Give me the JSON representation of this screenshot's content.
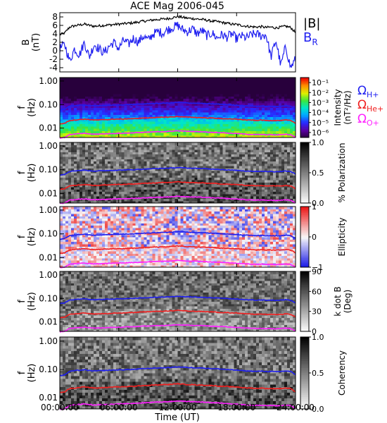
{
  "title": "ACE Mag 2006-045",
  "time_axis": {
    "ticks": [
      "00:00:00",
      "06:00:00",
      "12:00:00",
      "18:00:00",
      "24:00:00"
    ],
    "tick_hours": [
      0,
      6,
      12,
      18,
      24
    ],
    "label": "Time (UT)",
    "range_hours": [
      0,
      24
    ]
  },
  "chart_data": [
    {
      "type": "line",
      "panel": "field",
      "ylabel": [
        "B",
        "(nT)"
      ],
      "ylim": [
        -5,
        9
      ],
      "yticks": [
        "8",
        "6",
        "4",
        "2",
        "0",
        "-2",
        "-4"
      ],
      "ytick_values": [
        8,
        6,
        4,
        2,
        0,
        -2,
        -4
      ],
      "series": [
        {
          "name": "|B|",
          "color": "#000000",
          "x": [
            0,
            0.5,
            1,
            1.5,
            2,
            2.5,
            3,
            3.5,
            4,
            4.5,
            5,
            5.5,
            6,
            6.5,
            7,
            7.5,
            8,
            8.5,
            9,
            9.5,
            10,
            10.5,
            11,
            11.5,
            12,
            12.5,
            13,
            13.5,
            14,
            14.5,
            15,
            15.5,
            16,
            16.5,
            17,
            17.5,
            18,
            18.5,
            19,
            19.5,
            20,
            20.5,
            21,
            21.5,
            22,
            22.5,
            23,
            23.5,
            24
          ],
          "values": [
            3.8,
            4.2,
            5.6,
            5.9,
            6.1,
            6.3,
            6.0,
            5.8,
            5.9,
            6.0,
            6.1,
            6.2,
            6.3,
            6.4,
            6.5,
            6.6,
            6.8,
            7.0,
            7.1,
            7.3,
            7.4,
            7.5,
            7.6,
            7.8,
            8.1,
            7.9,
            7.7,
            7.6,
            7.5,
            7.4,
            7.2,
            7.0,
            6.9,
            6.7,
            6.5,
            6.3,
            6.2,
            6.0,
            5.8,
            5.7,
            5.6,
            5.7,
            5.5,
            5.6,
            5.4,
            5.6,
            5.8,
            5.5,
            4.3
          ]
        },
        {
          "name": "B_R",
          "label_main": "B",
          "label_sub": "R",
          "color": "#1f1ff0",
          "x": [
            0,
            0.5,
            1,
            1.5,
            2,
            2.5,
            3,
            3.5,
            4,
            4.5,
            5,
            5.5,
            6,
            6.5,
            7,
            7.5,
            8,
            8.5,
            9,
            9.5,
            10,
            10.5,
            11,
            11.5,
            12,
            12.5,
            13,
            13.5,
            14,
            14.5,
            15,
            15.5,
            16,
            16.5,
            17,
            17.5,
            18,
            18.5,
            19,
            19.5,
            20,
            20.5,
            21,
            21.5,
            22,
            22.5,
            23,
            23.5,
            24
          ],
          "values": [
            0.5,
            1.5,
            -2.5,
            0.5,
            -1.0,
            2.0,
            -1.5,
            1.5,
            0.5,
            -0.5,
            1.0,
            2.0,
            0.5,
            2.5,
            1.5,
            3.0,
            2.0,
            3.5,
            2.5,
            4.0,
            4.5,
            4.2,
            5.0,
            5.5,
            6.0,
            5.0,
            4.5,
            5.2,
            4.0,
            4.8,
            3.5,
            4.2,
            3.0,
            3.8,
            3.2,
            4.0,
            2.8,
            3.5,
            3.0,
            3.8,
            4.0,
            3.5,
            3.8,
            -1.5,
            2.5,
            -3.5,
            1.0,
            -4.0,
            -2.0
          ]
        }
      ]
    },
    {
      "type": "heatmap",
      "panel": "intensity",
      "ylabel": [
        "f",
        "(Hz)"
      ],
      "yticks": [
        "1.00",
        "0.10",
        "0.01"
      ],
      "ytick_values": [
        1.0,
        0.1,
        0.01
      ],
      "ylim": [
        0.004,
        1.4
      ],
      "yscale": "log",
      "colorbar": {
        "label": [
          "Intensity",
          "(nT²/Hz)"
        ],
        "ticks": [
          "10⁻¹",
          "10⁻²",
          "10⁻³",
          "10⁻⁴",
          "10⁻⁵",
          "10⁻⁶"
        ],
        "tick_values": [
          -1,
          -2,
          -3,
          -4,
          -5,
          -6
        ],
        "range": [
          -6.5,
          -0.5
        ],
        "colormap": "rainbow"
      },
      "legend": [
        {
          "main": "Ω",
          "sub": "H+",
          "color": "#1f1ff0"
        },
        {
          "main": "Ω",
          "sub": "He+",
          "color": "#f01f1f"
        },
        {
          "main": "Ω",
          "sub": "O+",
          "color": "#ff20ff"
        }
      ]
    },
    {
      "type": "heatmap",
      "panel": "polarization",
      "ylabel": [
        "f",
        "(Hz)"
      ],
      "yticks": [
        "1.00",
        "0.10",
        "0.01"
      ],
      "ytick_values": [
        1.0,
        0.1,
        0.01
      ],
      "ylim": [
        0.004,
        1.4
      ],
      "yscale": "log",
      "colorbar": {
        "label": [
          "% Polarization"
        ],
        "ticks": [
          "1.0",
          "0.5",
          "0.0"
        ],
        "tick_values": [
          1.0,
          0.5,
          0.0
        ],
        "range": [
          0,
          1
        ],
        "colormap": "gray"
      }
    },
    {
      "type": "heatmap",
      "panel": "ellipticity",
      "ylabel": [
        "f",
        "(Hz)"
      ],
      "yticks": [
        "1.00",
        "0.10",
        "0.01"
      ],
      "ytick_values": [
        1.0,
        0.1,
        0.01
      ],
      "ylim": [
        0.004,
        1.4
      ],
      "yscale": "log",
      "colorbar": {
        "label": [
          "Ellipticity"
        ],
        "ticks": [
          "1",
          "0",
          "−1"
        ],
        "tick_values": [
          1,
          0,
          -1
        ],
        "range": [
          -1,
          1
        ],
        "colormap": "bluewhitered"
      }
    },
    {
      "type": "heatmap",
      "panel": "wave-normal-angle",
      "ylabel": [
        "f",
        "(Hz)"
      ],
      "yticks": [
        "1.00",
        "0.10",
        "0.01"
      ],
      "ytick_values": [
        1.0,
        0.1,
        0.01
      ],
      "ylim": [
        0.004,
        1.4
      ],
      "yscale": "log",
      "colorbar": {
        "label": [
          "k dot B",
          "(Deg)"
        ],
        "ticks": [
          "90",
          "60",
          "30",
          "0"
        ],
        "tick_values": [
          90,
          60,
          30,
          0
        ],
        "range": [
          0,
          90
        ],
        "colormap": "gray"
      }
    },
    {
      "type": "heatmap",
      "panel": "coherency",
      "ylabel": [
        "f",
        "(Hz)"
      ],
      "yticks": [
        "1.00",
        "0.10",
        "0.01"
      ],
      "ytick_values": [
        1.0,
        0.1,
        0.01
      ],
      "ylim": [
        0.004,
        1.4
      ],
      "yscale": "log",
      "colorbar": {
        "label": [
          "Coherency"
        ],
        "ticks": [
          "1.0",
          "0.5",
          "0.0"
        ],
        "tick_values": [
          1.0,
          0.5,
          0.0
        ],
        "range": [
          0,
          1
        ],
        "colormap": "gray"
      }
    }
  ],
  "gyrofrequency_lines": {
    "x_hours": [
      0,
      0.5,
      1,
      1.5,
      2,
      2.5,
      3,
      3.5,
      4,
      4.5,
      5,
      5.5,
      6,
      6.5,
      7,
      7.5,
      8,
      8.5,
      9,
      9.5,
      10,
      10.5,
      11,
      11.5,
      12,
      12.5,
      13,
      13.5,
      14,
      14.5,
      15,
      15.5,
      16,
      16.5,
      17,
      17.5,
      18,
      18.5,
      19,
      19.5,
      20,
      20.5,
      21,
      21.5,
      22,
      22.5,
      23,
      23.5,
      24
    ],
    "H+": [
      0.06,
      0.064,
      0.085,
      0.09,
      0.093,
      0.096,
      0.091,
      0.088,
      0.09,
      0.091,
      0.093,
      0.094,
      0.096,
      0.097,
      0.099,
      0.1,
      0.103,
      0.106,
      0.108,
      0.111,
      0.112,
      0.114,
      0.116,
      0.119,
      0.123,
      0.12,
      0.117,
      0.115,
      0.114,
      0.112,
      0.109,
      0.106,
      0.105,
      0.102,
      0.099,
      0.096,
      0.094,
      0.091,
      0.088,
      0.087,
      0.085,
      0.087,
      0.084,
      0.085,
      0.082,
      0.085,
      0.088,
      0.084,
      0.065
    ],
    "He+": [
      0.015,
      0.016,
      0.021,
      0.022,
      0.023,
      0.024,
      0.023,
      0.022,
      0.022,
      0.023,
      0.023,
      0.024,
      0.024,
      0.024,
      0.025,
      0.025,
      0.026,
      0.027,
      0.027,
      0.028,
      0.028,
      0.029,
      0.029,
      0.03,
      0.031,
      0.03,
      0.029,
      0.029,
      0.028,
      0.028,
      0.027,
      0.027,
      0.026,
      0.025,
      0.025,
      0.024,
      0.024,
      0.023,
      0.022,
      0.022,
      0.021,
      0.022,
      0.021,
      0.021,
      0.021,
      0.021,
      0.022,
      0.021,
      0.016
    ],
    "O+": [
      0.0038,
      0.004,
      0.0053,
      0.0056,
      0.0058,
      0.006,
      0.0057,
      0.0055,
      0.0056,
      0.0057,
      0.0058,
      0.0059,
      0.006,
      0.0061,
      0.0062,
      0.0063,
      0.0064,
      0.0066,
      0.0067,
      0.0069,
      0.007,
      0.0071,
      0.0072,
      0.0074,
      0.0077,
      0.0075,
      0.0073,
      0.0072,
      0.0071,
      0.007,
      0.0068,
      0.0066,
      0.0065,
      0.0064,
      0.0062,
      0.006,
      0.0059,
      0.0057,
      0.0055,
      0.0054,
      0.0053,
      0.0054,
      0.0052,
      0.0053,
      0.0051,
      0.0053,
      0.0055,
      0.0052,
      0.0041
    ],
    "colors": {
      "H+": "#1f1ff0",
      "He+": "#f01f1f",
      "O+": "#ff20ff"
    }
  }
}
